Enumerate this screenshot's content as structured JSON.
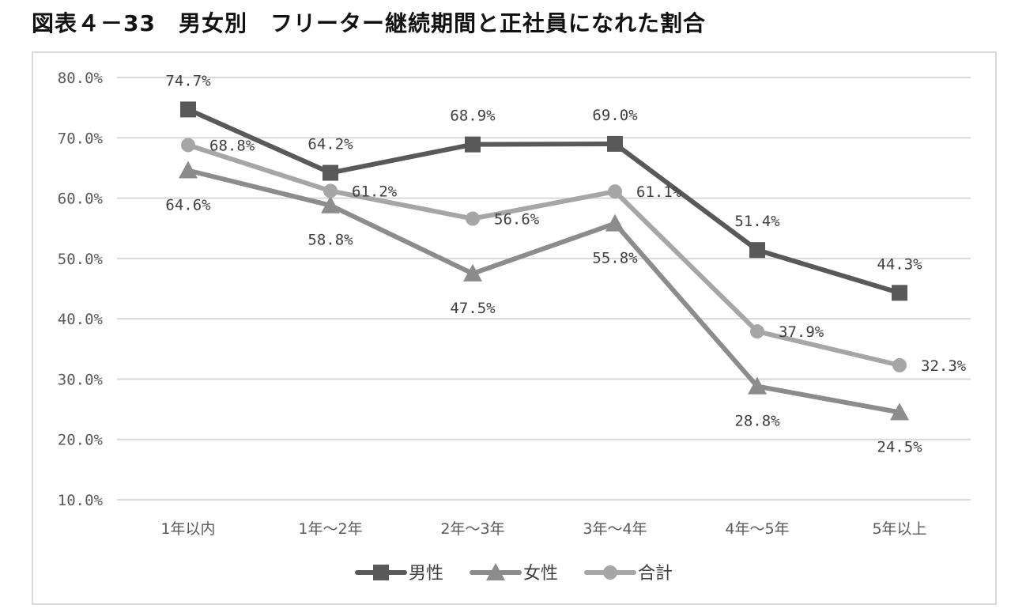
{
  "title": "図表４－33　男女別　フリーター継続期間と正社員になれた割合",
  "chart_data": {
    "type": "line",
    "title": "図表４－33　男女別　フリーター継続期間と正社員になれた割合",
    "categories": [
      "1年以内",
      "1年～2年",
      "2年～3年",
      "3年～4年",
      "4年～5年",
      "5年以上"
    ],
    "ylim": [
      10,
      80
    ],
    "yticks": [
      10,
      20,
      30,
      40,
      50,
      60,
      70,
      80
    ],
    "ytick_labels": [
      "10.0%",
      "20.0%",
      "30.0%",
      "40.0%",
      "50.0%",
      "60.0%",
      "70.0%",
      "80.0%"
    ],
    "grid": true,
    "legend_position": "bottom",
    "series": [
      {
        "name": "男性",
        "marker": "square",
        "color": "#595959",
        "values": [
          74.7,
          64.2,
          68.9,
          69.0,
          51.4,
          44.3
        ],
        "labels": [
          "74.7%",
          "64.2%",
          "68.9%",
          "69.0%",
          "51.4%",
          "44.3%"
        ]
      },
      {
        "name": "女性",
        "marker": "triangle",
        "color": "#8c8c8c",
        "values": [
          64.6,
          58.8,
          47.5,
          55.8,
          28.8,
          24.5
        ],
        "labels": [
          "64.6%",
          "58.8%",
          "47.5%",
          "55.8%",
          "28.8%",
          "24.5%"
        ]
      },
      {
        "name": "合計",
        "marker": "circle",
        "color": "#a6a6a6",
        "values": [
          68.8,
          61.2,
          56.6,
          61.1,
          37.9,
          32.3
        ],
        "labels": [
          "68.8%",
          "61.2%",
          "56.6%",
          "61.1%",
          "37.9%",
          "32.3%"
        ]
      }
    ]
  }
}
